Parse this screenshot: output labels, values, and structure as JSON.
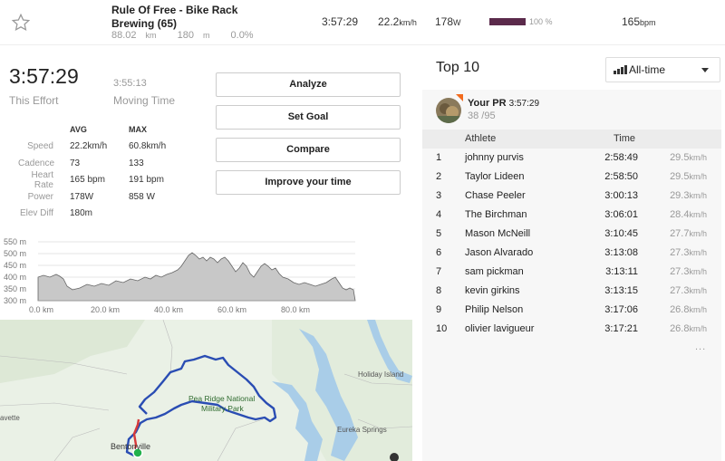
{
  "header": {
    "title": "Rule Of Free - Bike Rack Brewing (65)",
    "distance": "88.02",
    "distance_unit": "km",
    "elev": "180",
    "elev_unit": "m",
    "grade": "0.0%",
    "time": "3:57:29",
    "speed": "22.2",
    "speed_unit": "km/h",
    "power": "178",
    "power_unit": "W",
    "power_pct": "100 %",
    "power_fraction": 1.0,
    "hr": "165",
    "hr_unit": "bpm",
    "bar_color": "#5b2a4b"
  },
  "effort": {
    "time": "3:57:29",
    "time_label": "This Effort",
    "moving": "3:55:13",
    "moving_label": "Moving Time"
  },
  "stats": {
    "avg_label": "AVG",
    "max_label": "MAX",
    "rows": [
      {
        "label": "Speed",
        "avg": "22.2km/h",
        "max": "60.8km/h"
      },
      {
        "label": "Cadence",
        "avg": "73",
        "max": "133"
      },
      {
        "label": "Heart Rate",
        "avg": "165 bpm",
        "max": "191 bpm"
      },
      {
        "label": "Power",
        "avg": "178W",
        "max": "858 W"
      },
      {
        "label": "Elev Diff",
        "avg": "180m",
        "max": ""
      }
    ]
  },
  "buttons": {
    "analyze": "Analyze",
    "set_goal": "Set Goal",
    "compare": "Compare",
    "improve": "Improve your time"
  },
  "elevation": {
    "y_labels": [
      "550 m",
      "500 m",
      "450 m",
      "400 m",
      "350 m",
      "300 m"
    ],
    "x_labels": [
      "0.0 km",
      "20.0 km",
      "40.0 km",
      "60.0 km",
      "80.0 km"
    ]
  },
  "map": {
    "labels": {
      "park1": "Pea Ridge National",
      "park2": "Military Park",
      "holiday": "Holiday Island",
      "eureka": "Eureka Springs",
      "bentonville": "Bentonville",
      "avette": "avette"
    }
  },
  "top10": {
    "title": "Top 10",
    "filter": "All-time",
    "pr_label": "Your PR",
    "pr_time": "3:57:29",
    "pr_rank": "38 /95",
    "col_athlete": "Athlete",
    "col_time": "Time",
    "rows": [
      {
        "rank": "1",
        "name": "johnny purvis",
        "time": "2:58:49",
        "speed": "29.5",
        "unit": "km/h"
      },
      {
        "rank": "2",
        "name": "Taylor Lideen",
        "time": "2:58:50",
        "speed": "29.5",
        "unit": "km/h"
      },
      {
        "rank": "3",
        "name": "Chase Peeler",
        "time": "3:00:13",
        "speed": "29.3",
        "unit": "km/h"
      },
      {
        "rank": "4",
        "name": "The Birchman",
        "time": "3:06:01",
        "speed": "28.4",
        "unit": "km/h"
      },
      {
        "rank": "5",
        "name": "Mason McNeill",
        "time": "3:10:45",
        "speed": "27.7",
        "unit": "km/h"
      },
      {
        "rank": "6",
        "name": "Jason Alvarado",
        "time": "3:13:08",
        "speed": "27.3",
        "unit": "km/h"
      },
      {
        "rank": "7",
        "name": "sam pickman",
        "time": "3:13:11",
        "speed": "27.3",
        "unit": "km/h"
      },
      {
        "rank": "8",
        "name": "kevin girkins",
        "time": "3:13:15",
        "speed": "27.3",
        "unit": "km/h"
      },
      {
        "rank": "9",
        "name": "Philip Nelson",
        "time": "3:17:06",
        "speed": "26.8",
        "unit": "km/h"
      },
      {
        "rank": "10",
        "name": "olivier lavigueur",
        "time": "3:17:21",
        "speed": "26.8",
        "unit": "km/h"
      }
    ],
    "more": "..."
  }
}
